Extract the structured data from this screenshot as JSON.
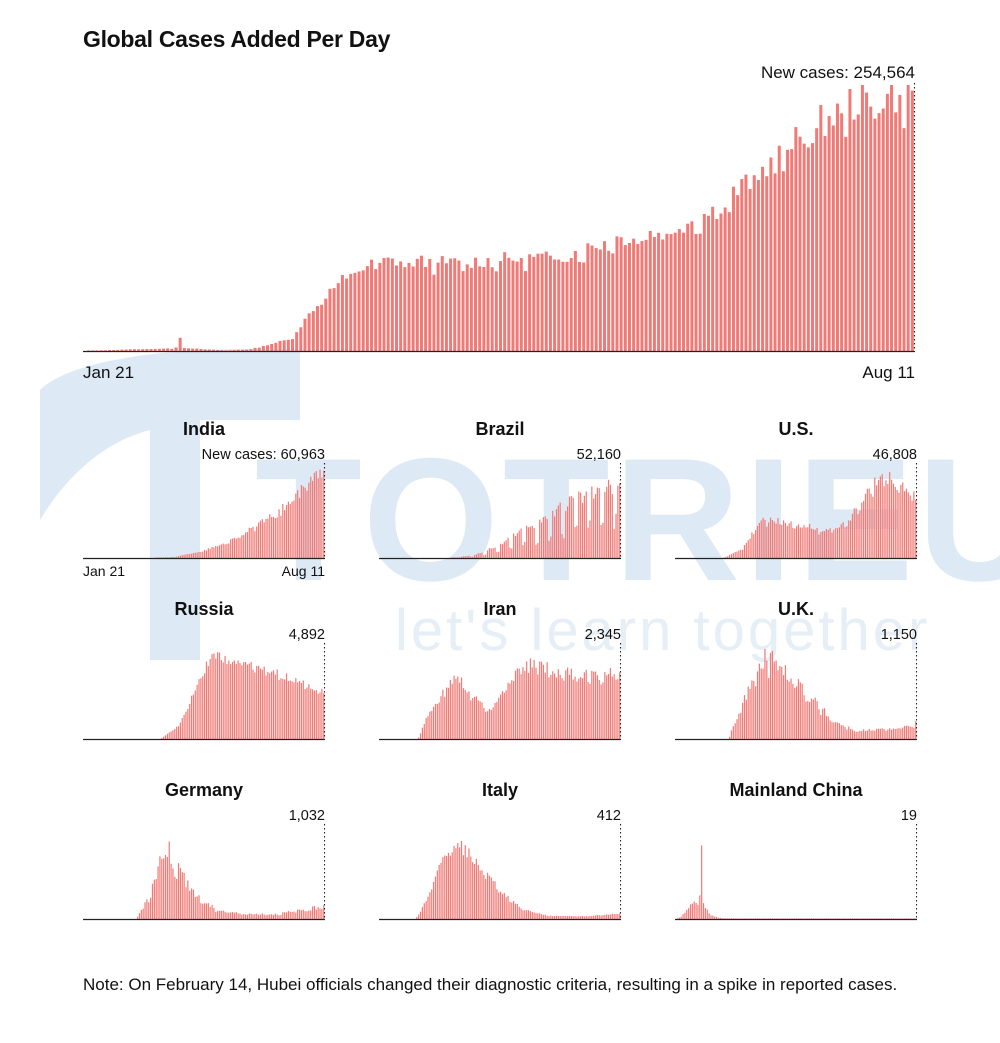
{
  "header": {
    "title": "Global Cases Added Per Day"
  },
  "note": "Note: On February 14, Hubei officials changed their diagnostic criteria, resulting in a spike in reported cases.",
  "watermark": {
    "brand": "TOTRIEU",
    "tagline": "let's learn together"
  },
  "colors": {
    "bar": "#f17a76",
    "axis": "#222222",
    "watermark": "#dce9f5"
  },
  "chart_data": [
    {
      "type": "bar",
      "title": "Global",
      "start_date": "Jan 21",
      "end_date": "Aug 11",
      "latest_label": "New cases: 254,564",
      "latest_value": 254564,
      "ylim": [
        0,
        260000
      ],
      "profile": [
        [
          0,
          0
        ],
        [
          0.05,
          1500
        ],
        [
          0.11,
          2500
        ],
        [
          0.115,
          15000
        ],
        [
          0.12,
          3000
        ],
        [
          0.17,
          500
        ],
        [
          0.2,
          1500
        ],
        [
          0.25,
          12000
        ],
        [
          0.28,
          45000
        ],
        [
          0.32,
          75000
        ],
        [
          0.36,
          87000
        ],
        [
          0.45,
          85000
        ],
        [
          0.5,
          88000
        ],
        [
          0.58,
          92000
        ],
        [
          0.64,
          108000
        ],
        [
          0.7,
          115000
        ],
        [
          0.76,
          135000
        ],
        [
          0.82,
          175000
        ],
        [
          0.88,
          215000
        ],
        [
          0.93,
          240000
        ],
        [
          1.0,
          250000
        ]
      ],
      "noise": 0.08,
      "weekly": 0.05
    },
    {
      "type": "bar",
      "title": "India",
      "start_date": "Jan 21",
      "end_date": "Aug 11",
      "latest_label": "New cases: 60,963",
      "latest_value": 60963,
      "ylim": [
        0,
        65000
      ],
      "profile": [
        [
          0,
          0
        ],
        [
          0.3,
          0
        ],
        [
          0.38,
          800
        ],
        [
          0.5,
          5000
        ],
        [
          0.6,
          11000
        ],
        [
          0.7,
          20000
        ],
        [
          0.8,
          30000
        ],
        [
          0.9,
          45000
        ],
        [
          1.0,
          62000
        ]
      ],
      "noise": 0.1,
      "weekly": 0.04
    },
    {
      "type": "bar",
      "title": "Brazil",
      "start_date": "Jan 21",
      "end_date": "Aug 11",
      "latest_label": "52,160",
      "latest_value": 52160,
      "ylim": [
        0,
        65000
      ],
      "profile": [
        [
          0,
          0
        ],
        [
          0.3,
          0
        ],
        [
          0.4,
          2000
        ],
        [
          0.5,
          8000
        ],
        [
          0.6,
          18000
        ],
        [
          0.7,
          25000
        ],
        [
          0.8,
          35000
        ],
        [
          0.9,
          40000
        ],
        [
          1.0,
          45000
        ]
      ],
      "noise": 0.15,
      "weekly": 0.45
    },
    {
      "type": "bar",
      "title": "U.S.",
      "start_date": "Jan 21",
      "end_date": "Aug 11",
      "latest_label": "46,808",
      "latest_value": 46808,
      "ylim": [
        0,
        75000
      ],
      "profile": [
        [
          0,
          0
        ],
        [
          0.2,
          0
        ],
        [
          0.28,
          8000
        ],
        [
          0.36,
          31000
        ],
        [
          0.45,
          28000
        ],
        [
          0.55,
          25000
        ],
        [
          0.65,
          22000
        ],
        [
          0.72,
          30000
        ],
        [
          0.8,
          52000
        ],
        [
          0.86,
          65000
        ],
        [
          0.92,
          60000
        ],
        [
          1.0,
          50000
        ]
      ],
      "noise": 0.1,
      "weekly": 0.1
    },
    {
      "type": "bar",
      "title": "Russia",
      "start_date": "Jan 21",
      "end_date": "Aug 11",
      "latest_label": "4,892",
      "latest_value": 4892,
      "ylim": [
        0,
        10000
      ],
      "profile": [
        [
          0,
          0
        ],
        [
          0.32,
          0
        ],
        [
          0.4,
          1500
        ],
        [
          0.47,
          5500
        ],
        [
          0.54,
          9200
        ],
        [
          0.6,
          8200
        ],
        [
          0.7,
          7700
        ],
        [
          0.8,
          7000
        ],
        [
          0.9,
          6000
        ],
        [
          1.0,
          5000
        ]
      ],
      "noise": 0.06,
      "weekly": 0.03
    },
    {
      "type": "bar",
      "title": "Iran",
      "start_date": "Jan 21",
      "end_date": "Aug 11",
      "latest_label": "2,345",
      "latest_value": 2345,
      "ylim": [
        0,
        3300
      ],
      "profile": [
        [
          0,
          0
        ],
        [
          0.16,
          0
        ],
        [
          0.2,
          800
        ],
        [
          0.25,
          1400
        ],
        [
          0.32,
          2200
        ],
        [
          0.38,
          1500
        ],
        [
          0.46,
          1000
        ],
        [
          0.52,
          1700
        ],
        [
          0.6,
          2500
        ],
        [
          0.66,
          2600
        ],
        [
          0.75,
          2300
        ],
        [
          0.85,
          2200
        ],
        [
          1.0,
          2300
        ]
      ],
      "noise": 0.1,
      "weekly": 0.05
    },
    {
      "type": "bar",
      "title": "U.K.",
      "start_date": "Jan 21",
      "end_date": "Aug 11",
      "latest_label": "1,150",
      "latest_value": 1150,
      "ylim": [
        0,
        6000
      ],
      "profile": [
        [
          0,
          0
        ],
        [
          0.22,
          0
        ],
        [
          0.3,
          3000
        ],
        [
          0.38,
          5200
        ],
        [
          0.45,
          4500
        ],
        [
          0.55,
          2800
        ],
        [
          0.65,
          1200
        ],
        [
          0.75,
          500
        ],
        [
          0.85,
          600
        ],
        [
          1.0,
          800
        ]
      ],
      "noise": 0.15,
      "weekly": 0.1
    },
    {
      "type": "bar",
      "title": "Germany",
      "start_date": "Jan 21",
      "end_date": "Aug 11",
      "latest_label": "1,032",
      "latest_value": 1032,
      "ylim": [
        0,
        7000
      ],
      "profile": [
        [
          0,
          0
        ],
        [
          0.22,
          0
        ],
        [
          0.28,
          2000
        ],
        [
          0.34,
          5500
        ],
        [
          0.4,
          3500
        ],
        [
          0.48,
          1500
        ],
        [
          0.55,
          700
        ],
        [
          0.65,
          400
        ],
        [
          0.8,
          350
        ],
        [
          1.0,
          900
        ]
      ],
      "noise": 0.2,
      "weekly": 0.1
    },
    {
      "type": "bar",
      "title": "Italy",
      "start_date": "Jan 21",
      "end_date": "Aug 11",
      "latest_label": "412",
      "latest_value": 412,
      "ylim": [
        0,
        7000
      ],
      "profile": [
        [
          0,
          0
        ],
        [
          0.15,
          0
        ],
        [
          0.2,
          1500
        ],
        [
          0.27,
          4800
        ],
        [
          0.33,
          5600
        ],
        [
          0.42,
          3800
        ],
        [
          0.52,
          1800
        ],
        [
          0.6,
          700
        ],
        [
          0.7,
          250
        ],
        [
          0.85,
          200
        ],
        [
          1.0,
          400
        ]
      ],
      "noise": 0.1,
      "weekly": 0.05
    },
    {
      "type": "bar",
      "title": "Mainland China",
      "start_date": "Jan 21",
      "end_date": "Aug 11",
      "latest_label": "19",
      "latest_value": 19,
      "ylim": [
        0,
        15000
      ],
      "profile": [
        [
          0,
          0
        ],
        [
          0.02,
          300
        ],
        [
          0.06,
          2000
        ],
        [
          0.08,
          3000
        ],
        [
          0.1,
          2500
        ],
        [
          0.11,
          14000
        ],
        [
          0.115,
          2500
        ],
        [
          0.14,
          800
        ],
        [
          0.18,
          200
        ],
        [
          0.22,
          50
        ],
        [
          0.3,
          20
        ],
        [
          1.0,
          20
        ]
      ],
      "noise": 0.15,
      "weekly": 0
    }
  ]
}
